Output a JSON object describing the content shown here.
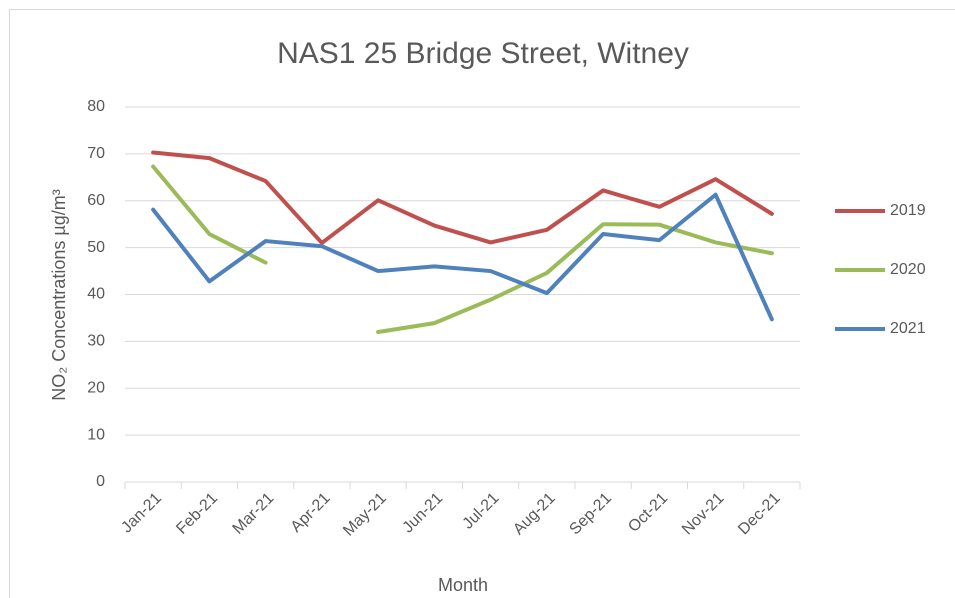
{
  "chart_data": {
    "type": "line",
    "title": "NAS1 25 Bridge Street, Witney",
    "x_label": "Month",
    "y_label": "NO₂ Concentrations µg/m³",
    "categories": [
      "Jan-21",
      "Feb-21",
      "Mar-21",
      "Apr-21",
      "May-21",
      "Jun-21",
      "Jul-21",
      "Aug-21",
      "Sep-21",
      "Oct-21",
      "Nov-21",
      "Dec-21"
    ],
    "series": [
      {
        "name": "2019",
        "color": "#c0504d",
        "values": [
          70.3,
          69.1,
          64.2,
          51.0,
          60.1,
          54.7,
          51.1,
          53.8,
          62.2,
          58.7,
          64.6,
          57.2
        ]
      },
      {
        "name": "2020",
        "color": "#9bbb59",
        "values": [
          67.3,
          52.9,
          46.8,
          null,
          32.0,
          33.9,
          38.9,
          44.6,
          55.0,
          54.9,
          51.1,
          48.8
        ]
      },
      {
        "name": "2021",
        "color": "#4f81bd",
        "values": [
          58.1,
          42.8,
          51.4,
          50.3,
          45.0,
          46.0,
          45.0,
          40.3,
          52.9,
          51.6,
          61.3,
          34.7
        ]
      }
    ],
    "ylim": [
      0,
      80
    ],
    "yticks": [
      0,
      10,
      20,
      30,
      40,
      50,
      60,
      70,
      80
    ],
    "grid": true,
    "legend": "right"
  }
}
